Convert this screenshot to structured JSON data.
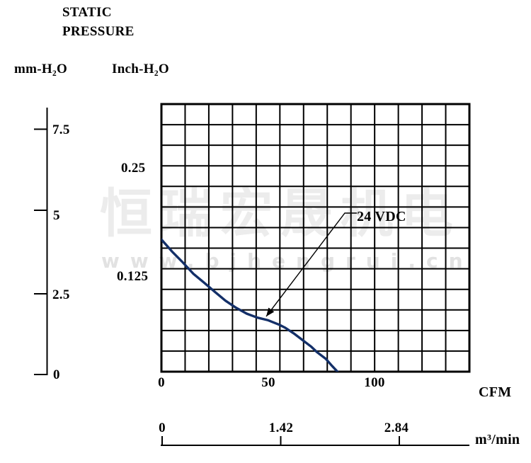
{
  "header": {
    "title_line1": "STATIC",
    "title_line2": "PRESSURE",
    "unit_mm": "mm-H₂O",
    "unit_inch": "Inch-H₂O"
  },
  "watermark": {
    "logo": "恒瑞宏晟机电",
    "url": "www.bjhengrui.cn"
  },
  "axis_mm_ticks": [
    "7.5",
    "5",
    "2.5",
    "0"
  ],
  "axis_inch_ticks": [
    "0.25",
    "0.125"
  ],
  "axis_cfm": {
    "ticks": [
      "0",
      "50",
      "100"
    ],
    "unit": "CFM"
  },
  "axis_m3": {
    "ticks": [
      "0",
      "1.42",
      "2.84"
    ],
    "unit": "m³/min"
  },
  "annotation": {
    "label": "24 VDC"
  },
  "chart_data": {
    "type": "line",
    "title": "STATIC PRESSURE",
    "xlabel": "CFM",
    "xlabel_secondary": "m³/min",
    "ylabel_primary": "mm-H₂O",
    "ylabel_secondary": "Inch-H₂O",
    "x_ticks_cfm": [
      0,
      50,
      100
    ],
    "x_ticks_m3min": [
      0,
      1.42,
      2.84
    ],
    "y_ticks_mm_h2o": [
      0,
      2.5,
      5,
      7.5
    ],
    "y_ticks_inch_h2o": [
      0.125,
      0.25
    ],
    "x_range_cfm": [
      0,
      144
    ],
    "y_range_mm_h2o": [
      0,
      8.3
    ],
    "grid": {
      "cols": 13,
      "rows": 13,
      "grid_on": true
    },
    "series": [
      {
        "name": "24 VDC",
        "color": "#132f68",
        "x_cfm": [
          0,
          5,
          10,
          15,
          20,
          25,
          30,
          35,
          40,
          45,
          50,
          55,
          58,
          62,
          66,
          70,
          73,
          77,
          80,
          84
        ],
        "y_mm_h2o": [
          4.15,
          3.78,
          3.45,
          3.1,
          2.83,
          2.55,
          2.28,
          2.06,
          1.88,
          1.76,
          1.68,
          1.55,
          1.45,
          1.28,
          1.08,
          0.88,
          0.7,
          0.5,
          0.28,
          0
        ]
      }
    ],
    "annotations": [
      {
        "text": "24 VDC",
        "points_to_cfm": 48,
        "points_to_mm_h2o": 1.72
      }
    ],
    "legend_position": "none"
  }
}
